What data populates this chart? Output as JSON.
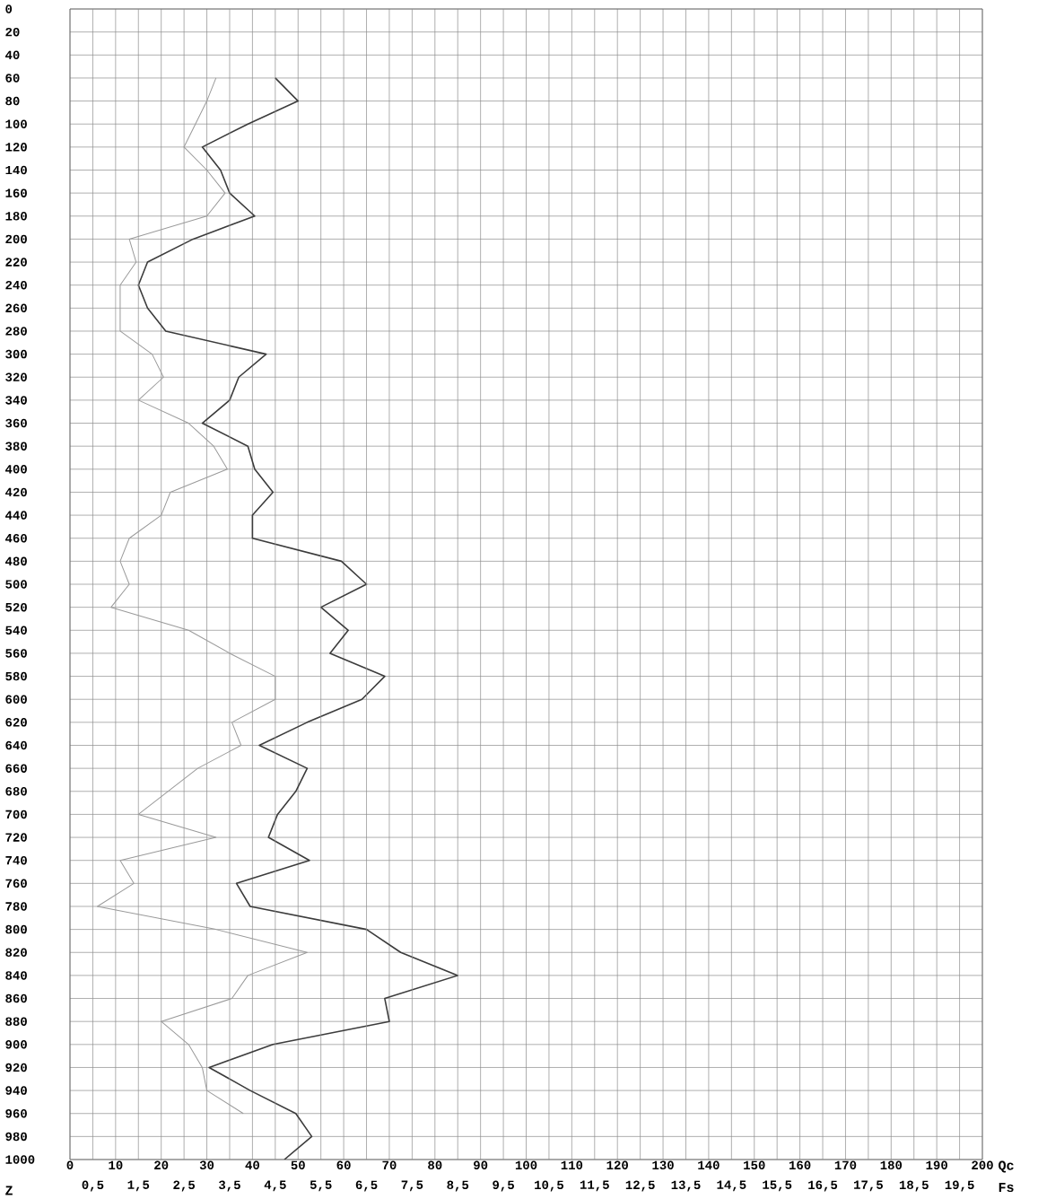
{
  "chart_data": {
    "type": "line",
    "orientation": "horizontal",
    "xlabel": "Qc",
    "x2label": "Fs",
    "ylabel": "Z",
    "xlim": [
      0,
      200
    ],
    "xticks": [
      0,
      10,
      20,
      30,
      40,
      50,
      60,
      70,
      80,
      90,
      100,
      110,
      120,
      130,
      140,
      150,
      160,
      170,
      180,
      190,
      200
    ],
    "x2lim": [
      0,
      20
    ],
    "x2ticks": [
      {
        "value": 0.5,
        "label": "0,5"
      },
      {
        "value": 1.5,
        "label": "1,5"
      },
      {
        "value": 2.5,
        "label": "2,5"
      },
      {
        "value": 3.5,
        "label": "3,5"
      },
      {
        "value": 4.5,
        "label": "4,5"
      },
      {
        "value": 5.5,
        "label": "5,5"
      },
      {
        "value": 6.5,
        "label": "6,5"
      },
      {
        "value": 7.5,
        "label": "7,5"
      },
      {
        "value": 8.5,
        "label": "8,5"
      },
      {
        "value": 9.5,
        "label": "9,5"
      },
      {
        "value": 10.5,
        "label": "10,5"
      },
      {
        "value": 11.5,
        "label": "11,5"
      },
      {
        "value": 12.5,
        "label": "12,5"
      },
      {
        "value": 13.5,
        "label": "13,5"
      },
      {
        "value": 14.5,
        "label": "14,5"
      },
      {
        "value": 15.5,
        "label": "15,5"
      },
      {
        "value": 16.5,
        "label": "16,5"
      },
      {
        "value": 17.5,
        "label": "17,5"
      },
      {
        "value": 18.5,
        "label": "18,5"
      },
      {
        "value": 19.5,
        "label": "19,5"
      }
    ],
    "ylim": [
      1000,
      0
    ],
    "yticks": [
      0,
      20,
      40,
      60,
      80,
      100,
      120,
      140,
      160,
      180,
      200,
      220,
      240,
      260,
      280,
      300,
      320,
      340,
      360,
      380,
      400,
      420,
      440,
      460,
      480,
      500,
      520,
      540,
      560,
      580,
      600,
      620,
      640,
      660,
      680,
      700,
      720,
      740,
      760,
      780,
      800,
      820,
      840,
      860,
      880,
      900,
      920,
      940,
      960,
      980,
      1000
    ],
    "grid": true,
    "series": [
      {
        "color": "#3c3c3c",
        "x": [
          60,
          80,
          100,
          120,
          140,
          160,
          180,
          200,
          220,
          240,
          260,
          280,
          300,
          320,
          340,
          360,
          380,
          400,
          420,
          440,
          460,
          480,
          500,
          520,
          540,
          560,
          580,
          600,
          620,
          640,
          660,
          680,
          700,
          720,
          740,
          760,
          780,
          800,
          820,
          840,
          860,
          880,
          900,
          920,
          940,
          960,
          980,
          1000
        ],
        "values": [
          45,
          50,
          39,
          29,
          33,
          35,
          40.5,
          27,
          17,
          15,
          17,
          21,
          43,
          37,
          35,
          29,
          39,
          40.5,
          44.5,
          40,
          40,
          59.5,
          65,
          55,
          61,
          57,
          69,
          64,
          52,
          41.5,
          52,
          49.5,
          45.5,
          43.5,
          52.5,
          36.5,
          39.5,
          65,
          72.5,
          85,
          69,
          70,
          44.5,
          30.5,
          39.5,
          49.5,
          53,
          47
        ]
      },
      {
        "color": "#9a9a9a",
        "axis": "x2",
        "x": [
          60,
          80,
          100,
          120,
          140,
          160,
          180,
          200,
          220,
          240,
          280,
          300,
          320,
          340,
          360,
          380,
          400,
          420,
          440,
          460,
          480,
          500,
          520,
          540,
          560,
          580,
          600,
          620,
          640,
          660,
          700,
          720,
          740,
          760,
          780,
          800,
          820,
          840,
          860,
          880,
          900,
          920,
          940,
          960
        ],
        "values": [
          3.2,
          3.0,
          2.75,
          2.5,
          3.0,
          3.4,
          3.0,
          1.3,
          1.45,
          1.1,
          1.1,
          1.8,
          2.05,
          1.5,
          2.6,
          3.15,
          3.45,
          2.2,
          2.0,
          1.3,
          1.1,
          1.3,
          0.9,
          2.6,
          3.5,
          4.5,
          4.5,
          3.55,
          3.75,
          2.8,
          1.5,
          3.2,
          1.1,
          1.4,
          0.6,
          3.2,
          5.2,
          3.9,
          3.55,
          2.0,
          2.6,
          2.9,
          3.0,
          3.8
        ]
      }
    ]
  }
}
